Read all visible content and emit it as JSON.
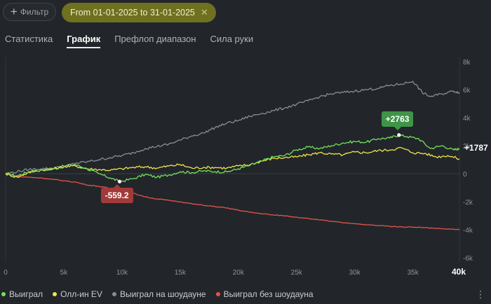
{
  "filter": {
    "label": "Фильтр",
    "icon": "plus-icon"
  },
  "date_chip": {
    "label": "From 01-01-2025 to 31-01-2025",
    "close_icon": "close-icon"
  },
  "tabs": [
    {
      "label": "Статистика",
      "active": false
    },
    {
      "label": "График",
      "active": true
    },
    {
      "label": "Префлоп диапазон",
      "active": false
    },
    {
      "label": "Сила руки",
      "active": false
    }
  ],
  "colors": {
    "won": "#74e25b",
    "allin_ev": "#f1e54a",
    "showdown": "#8a8d90",
    "non_showdown": "#e5534b"
  },
  "chart_data": {
    "type": "line",
    "x_ticks": [
      "0",
      "5k",
      "10k",
      "15k",
      "20k",
      "25k",
      "30k",
      "35k",
      "40k"
    ],
    "y_ticks": [
      "8k",
      "6k",
      "4k",
      "2k",
      "0",
      "-2k",
      "-4k",
      "-6k"
    ],
    "xlim": [
      0,
      39000
    ],
    "ylim": [
      -6000,
      8000
    ],
    "end_label": "+1787",
    "annotations": [
      {
        "text": "+2763",
        "x": 33800,
        "y": 2763,
        "series": "Выиграл"
      },
      {
        "text": "-559.2",
        "x": 9800,
        "y": -559.2,
        "series": "Выиграл"
      }
    ],
    "series": [
      {
        "name": "Выиграл",
        "color": "#74e25b",
        "points": [
          [
            0,
            0
          ],
          [
            1000,
            -150
          ],
          [
            2000,
            150
          ],
          [
            3000,
            250
          ],
          [
            4000,
            300
          ],
          [
            5000,
            550
          ],
          [
            6000,
            650
          ],
          [
            7000,
            350
          ],
          [
            8000,
            0
          ],
          [
            9000,
            -300
          ],
          [
            9800,
            -559
          ],
          [
            11000,
            -350
          ],
          [
            12000,
            -50
          ],
          [
            13000,
            -250
          ],
          [
            14000,
            -100
          ],
          [
            15000,
            150
          ],
          [
            16000,
            80
          ],
          [
            17000,
            200
          ],
          [
            18000,
            150
          ],
          [
            19000,
            130
          ],
          [
            20000,
            350
          ],
          [
            21000,
            600
          ],
          [
            22000,
            900
          ],
          [
            23000,
            1200
          ],
          [
            24000,
            1300
          ],
          [
            25000,
            1700
          ],
          [
            26000,
            1900
          ],
          [
            27000,
            1800
          ],
          [
            28000,
            2000
          ],
          [
            29000,
            2200
          ],
          [
            30000,
            2300
          ],
          [
            31000,
            2250
          ],
          [
            32000,
            2500
          ],
          [
            33000,
            2550
          ],
          [
            33800,
            2763
          ],
          [
            34500,
            2650
          ],
          [
            35500,
            2500
          ],
          [
            36500,
            1800
          ],
          [
            37500,
            2000
          ],
          [
            38500,
            1700
          ],
          [
            39000,
            1787
          ]
        ]
      },
      {
        "name": "Олл-ин EV",
        "color": "#f1e54a",
        "points": [
          [
            0,
            0
          ],
          [
            1000,
            -250
          ],
          [
            2000,
            100
          ],
          [
            3000,
            250
          ],
          [
            4000,
            350
          ],
          [
            5000,
            500
          ],
          [
            6000,
            550
          ],
          [
            7000,
            350
          ],
          [
            8000,
            300
          ],
          [
            9000,
            250
          ],
          [
            10000,
            350
          ],
          [
            11000,
            450
          ],
          [
            12000,
            500
          ],
          [
            13000,
            400
          ],
          [
            14000,
            550
          ],
          [
            15000,
            650
          ],
          [
            16000,
            400
          ],
          [
            17000,
            450
          ],
          [
            18000,
            450
          ],
          [
            19000,
            400
          ],
          [
            20000,
            550
          ],
          [
            21000,
            650
          ],
          [
            22000,
            900
          ],
          [
            23000,
            1100
          ],
          [
            24000,
            1150
          ],
          [
            25000,
            1200
          ],
          [
            26000,
            1350
          ],
          [
            27000,
            1500
          ],
          [
            28000,
            1400
          ],
          [
            29000,
            1350
          ],
          [
            30000,
            1550
          ],
          [
            31000,
            1500
          ],
          [
            32000,
            1650
          ],
          [
            33000,
            1700
          ],
          [
            34000,
            1850
          ],
          [
            35000,
            1500
          ],
          [
            36000,
            1450
          ],
          [
            37000,
            1200
          ],
          [
            38000,
            1300
          ],
          [
            39000,
            1050
          ]
        ]
      },
      {
        "name": "Выиграл на шоудауне",
        "color": "#8a8d90",
        "points": [
          [
            0,
            0
          ],
          [
            1000,
            150
          ],
          [
            2000,
            300
          ],
          [
            3000,
            350
          ],
          [
            4000,
            400
          ],
          [
            5000,
            500
          ],
          [
            6000,
            750
          ],
          [
            7000,
            850
          ],
          [
            8000,
            1000
          ],
          [
            9000,
            1150
          ],
          [
            10000,
            1300
          ],
          [
            11000,
            1500
          ],
          [
            12000,
            1800
          ],
          [
            13000,
            1950
          ],
          [
            14000,
            2100
          ],
          [
            15000,
            2400
          ],
          [
            16000,
            2700
          ],
          [
            17000,
            2900
          ],
          [
            18000,
            3300
          ],
          [
            19000,
            3600
          ],
          [
            20000,
            3800
          ],
          [
            21000,
            4100
          ],
          [
            22000,
            4300
          ],
          [
            23000,
            4500
          ],
          [
            24000,
            4700
          ],
          [
            25000,
            4950
          ],
          [
            26000,
            5200
          ],
          [
            27000,
            5500
          ],
          [
            28000,
            5700
          ],
          [
            29000,
            5800
          ],
          [
            30000,
            5900
          ],
          [
            31000,
            6000
          ],
          [
            32000,
            6100
          ],
          [
            33000,
            6300
          ],
          [
            34000,
            6400
          ],
          [
            35000,
            6600
          ],
          [
            35800,
            5800
          ],
          [
            36500,
            5500
          ],
          [
            37500,
            5700
          ],
          [
            38500,
            5900
          ],
          [
            39000,
            5800
          ]
        ]
      },
      {
        "name": "Выиграл без шоудауна",
        "color": "#e5534b",
        "points": [
          [
            0,
            0
          ],
          [
            1000,
            -200
          ],
          [
            2000,
            -250
          ],
          [
            3000,
            -300
          ],
          [
            4000,
            -400
          ],
          [
            5000,
            -500
          ],
          [
            6000,
            -600
          ],
          [
            7000,
            -800
          ],
          [
            8000,
            -900
          ],
          [
            9000,
            -1050
          ],
          [
            10000,
            -1200
          ],
          [
            11000,
            -1400
          ],
          [
            12000,
            -1650
          ],
          [
            13000,
            -1800
          ],
          [
            14000,
            -1900
          ],
          [
            15000,
            -2000
          ],
          [
            16000,
            -2150
          ],
          [
            17000,
            -2250
          ],
          [
            18000,
            -2350
          ],
          [
            19000,
            -2450
          ],
          [
            20000,
            -2600
          ],
          [
            21000,
            -2750
          ],
          [
            22000,
            -2850
          ],
          [
            23000,
            -2950
          ],
          [
            24000,
            -3000
          ],
          [
            25000,
            -3100
          ],
          [
            26000,
            -3200
          ],
          [
            27000,
            -3300
          ],
          [
            28000,
            -3400
          ],
          [
            29000,
            -3500
          ],
          [
            30000,
            -3550
          ],
          [
            31000,
            -3650
          ],
          [
            32000,
            -3700
          ],
          [
            33000,
            -3750
          ],
          [
            34000,
            -3800
          ],
          [
            35000,
            -3800
          ],
          [
            36000,
            -3850
          ],
          [
            37000,
            -3900
          ],
          [
            38000,
            -3950
          ],
          [
            39000,
            -4000
          ]
        ]
      }
    ],
    "legend_position": "bottom-left",
    "grid": false
  },
  "legend": [
    {
      "label": "Выиграл",
      "color": "#74e25b"
    },
    {
      "label": "Олл-ин EV",
      "color": "#f1e54a"
    },
    {
      "label": "Выиграл на шоудауне",
      "color": "#8a8d90"
    },
    {
      "label": "Выиграл без шоудауна",
      "color": "#e5534b"
    }
  ],
  "more_icon": "more-vertical-icon"
}
